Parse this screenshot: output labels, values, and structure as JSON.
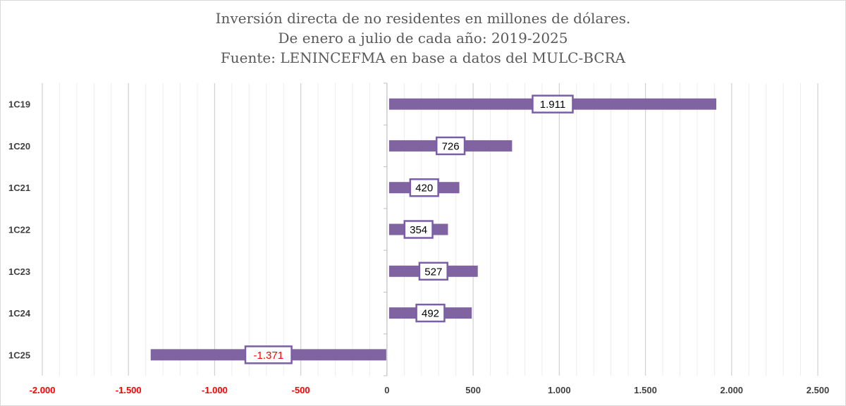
{
  "chart_data": {
    "type": "bar",
    "orientation": "horizontal",
    "title_lines": [
      "Inversión directa de no residentes en millones de dólares.",
      "De enero a julio de cada año: 2019-2025",
      "Fuente: LENINCEFMA en base a datos del MULC-BCRA"
    ],
    "categories": [
      "1C19",
      "1C20",
      "1C21",
      "1C22",
      "1C23",
      "1C24",
      "1C25"
    ],
    "values": [
      1911,
      726,
      420,
      354,
      527,
      492,
      -1371
    ],
    "value_labels": [
      "1.911",
      "726",
      "420",
      "354",
      "527",
      "492",
      "-1.371"
    ],
    "xlim": [
      -2000,
      2500
    ],
    "x_ticks": [
      -2000,
      -1500,
      -1000,
      -500,
      0,
      500,
      1000,
      1500,
      2000,
      2500
    ],
    "x_tick_labels": [
      "-2.000",
      "-1.500",
      "-1.000",
      "-500",
      "0",
      "500",
      "1.000",
      "1.500",
      "2.000",
      "2.500"
    ],
    "grid": true,
    "legend": "none",
    "colors": {
      "bar": "#8064a2",
      "label_border": "#7a5ea8",
      "negative_text": "#ff0000",
      "positive_text": "#000000",
      "gridline": "#d9d9d9",
      "title": "#595959"
    }
  }
}
